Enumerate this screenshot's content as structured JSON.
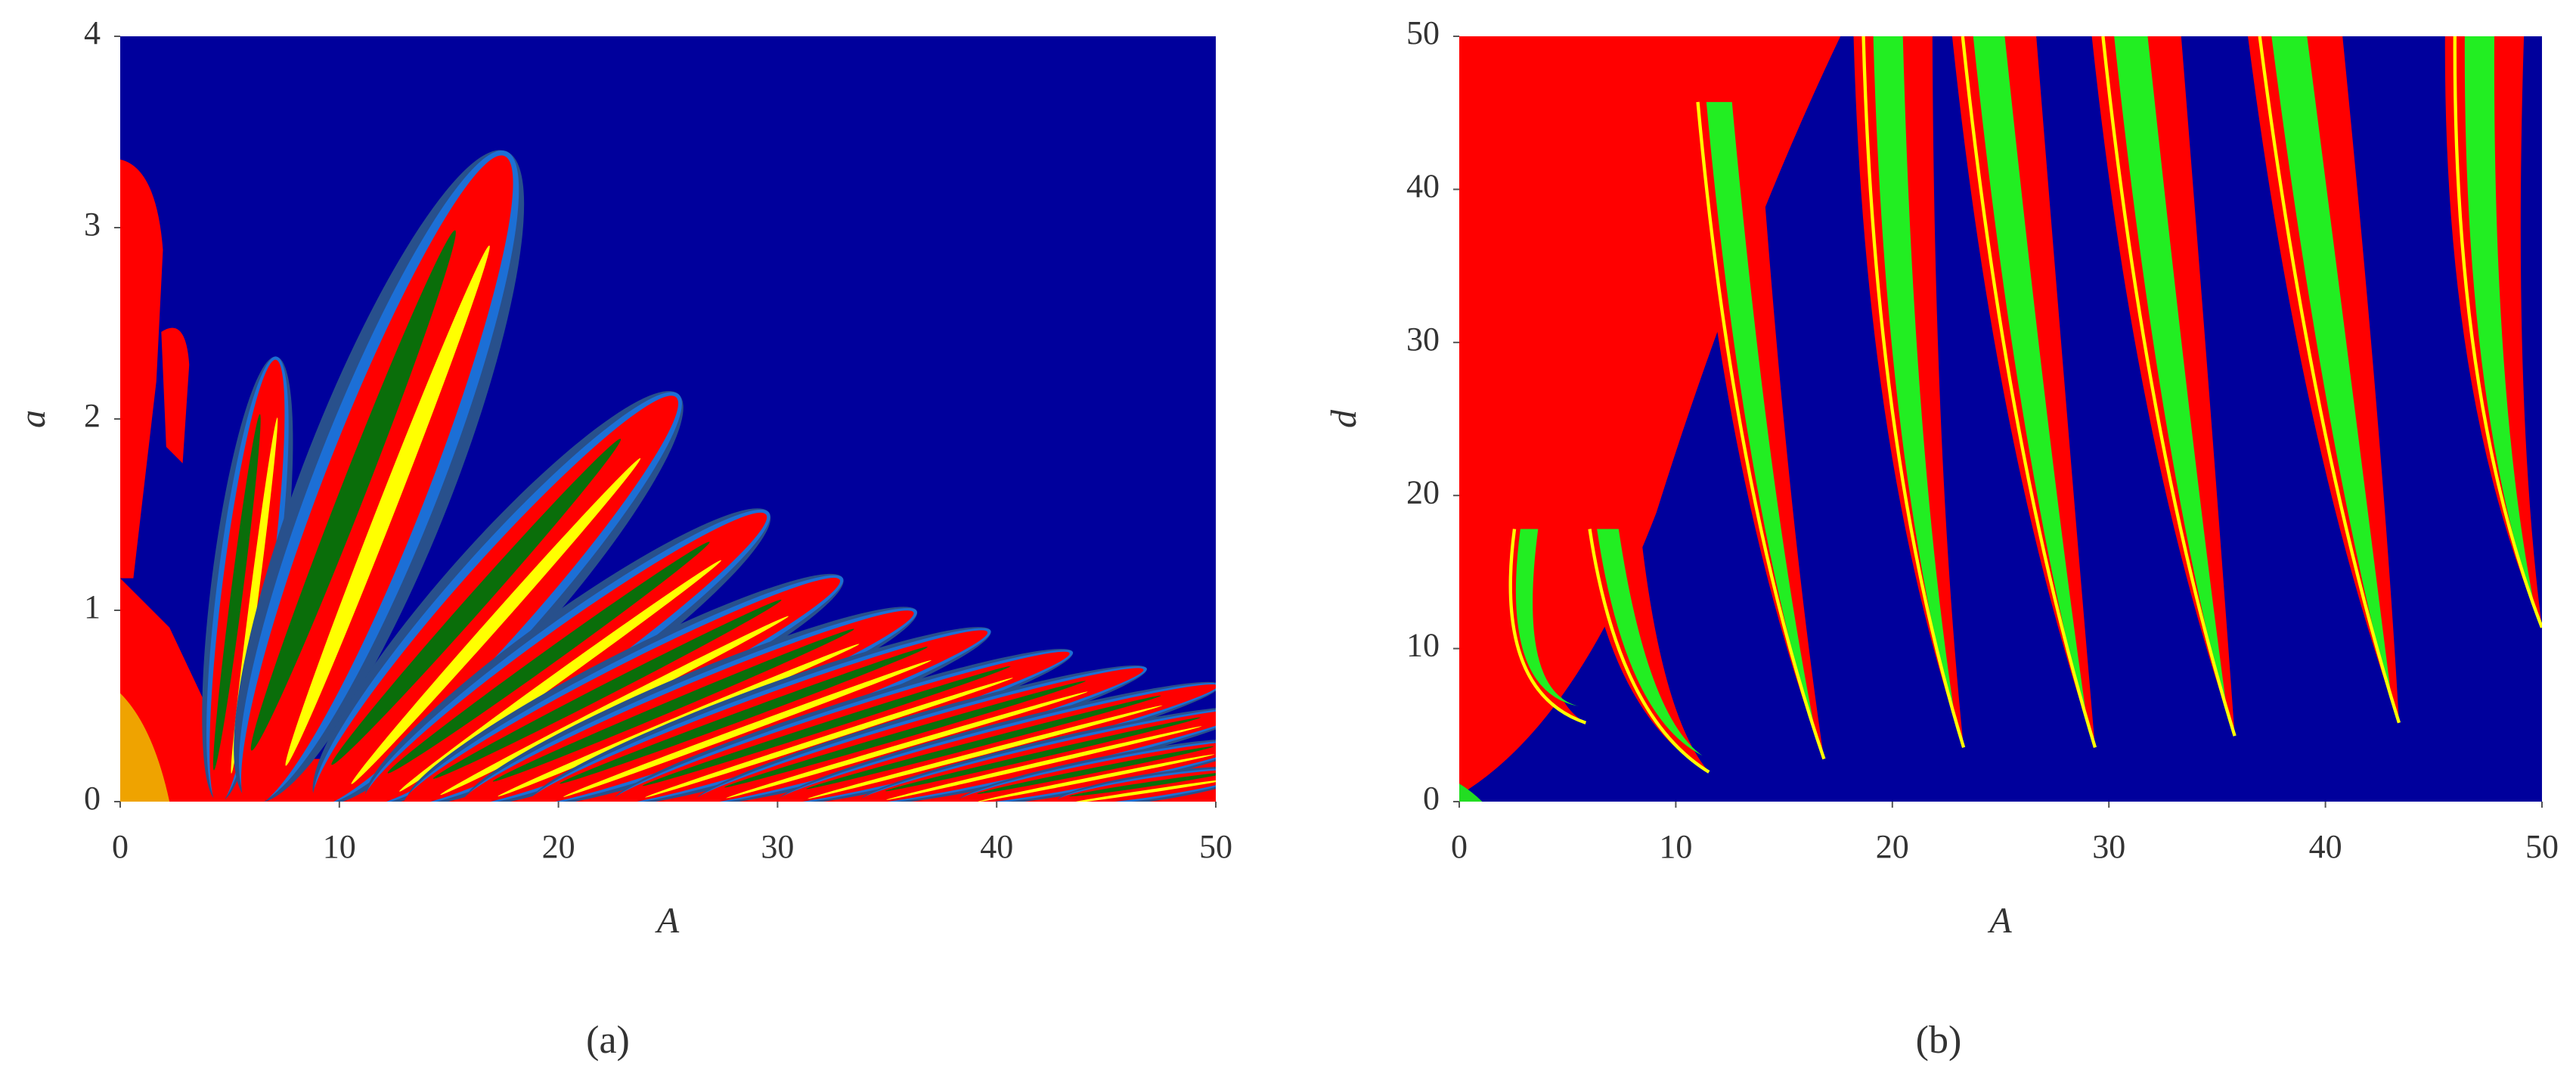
{
  "chart_data": [
    {
      "type": "regime-map",
      "x_label": "A",
      "y_label": "a",
      "caption": "(a)",
      "xlim": [
        0,
        50
      ],
      "ylim": [
        0,
        4
      ],
      "xticks": [
        0,
        10,
        20,
        30,
        40,
        50
      ],
      "yticks": [
        0,
        1,
        2,
        3,
        4
      ]
    },
    {
      "type": "regime-map",
      "x_label": "A",
      "y_label": "d",
      "caption": "(b)",
      "xlim": [
        0,
        50
      ],
      "ylim": [
        0,
        50
      ],
      "xticks": [
        0,
        10,
        20,
        30,
        40,
        50
      ],
      "yticks": [
        0,
        10,
        20,
        30,
        40,
        50
      ]
    }
  ]
}
